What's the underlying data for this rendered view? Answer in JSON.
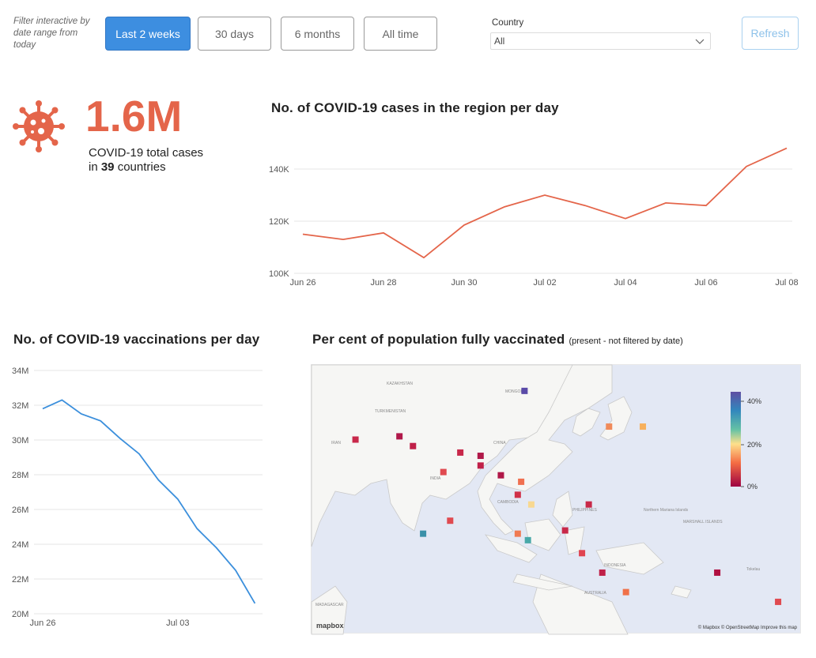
{
  "filter": {
    "caption": "Filter interactive by  date range from today",
    "buttons": [
      {
        "label": "Last 2 weeks",
        "active": true
      },
      {
        "label": "30 days",
        "active": false
      },
      {
        "label": "6 months",
        "active": false
      },
      {
        "label": "All time",
        "active": false
      }
    ],
    "country_label": "Country",
    "country_value": "All",
    "refresh_label": "Refresh"
  },
  "stat": {
    "value": "1.6M",
    "line1": "COVID-19 total cases",
    "line2_prefix": "in ",
    "country_count": "39",
    "line2_suffix": " countries",
    "icon": "virus-icon",
    "accent": "#e4654a"
  },
  "cases_chart": {
    "title": "No. of COVID-19 cases in the region per day"
  },
  "vacc_chart": {
    "title": "No. of COVID-19 vaccinations per day"
  },
  "map_panel": {
    "title": "Per cent of population fully vaccinated",
    "subtitle": "(present - not filtered by date)",
    "attribution_left": "mapbox",
    "attribution_right": "© Mapbox © OpenStreetMap  Improve this map",
    "legend_ticks": [
      "40%",
      "20%",
      "0%"
    ]
  },
  "chart_data": [
    {
      "type": "line",
      "title": "No. of COVID-19 cases in the region per day",
      "x": [
        "Jun 26",
        "Jun 27",
        "Jun 28",
        "Jun 29",
        "Jun 30",
        "Jul 01",
        "Jul 02",
        "Jul 03",
        "Jul 04",
        "Jul 05",
        "Jul 06",
        "Jul 07",
        "Jul 08"
      ],
      "xticks": [
        "Jun 26",
        "Jun 28",
        "Jun 30",
        "Jul 02",
        "Jul 04",
        "Jul 06",
        "Jul 08"
      ],
      "values": [
        115000,
        113000,
        115500,
        106000,
        118500,
        125500,
        130000,
        126000,
        121000,
        127000,
        126000,
        141000,
        148000
      ],
      "yticks": [
        "100K",
        "120K",
        "140K"
      ],
      "ylim": [
        100000,
        150000
      ],
      "color": "#e4654a",
      "grid": true
    },
    {
      "type": "line",
      "title": "No. of COVID-19 vaccinations per day",
      "x": [
        "Jun 26",
        "Jun 27",
        "Jun 28",
        "Jun 29",
        "Jun 30",
        "Jul 01",
        "Jul 02",
        "Jul 03",
        "Jul 04",
        "Jul 05",
        "Jul 06",
        "Jul 07"
      ],
      "xticks": [
        "Jun 26",
        "Jul 03"
      ],
      "values": [
        31800000,
        32300000,
        31500000,
        31100000,
        30100000,
        29200000,
        27700000,
        26600000,
        24900000,
        23800000,
        22500000,
        20600000
      ],
      "yticks": [
        "20M",
        "22M",
        "24M",
        "26M",
        "28M",
        "30M",
        "32M",
        "34M"
      ],
      "ylim": [
        20000000,
        34000000
      ],
      "color": "#3b8fdc",
      "grid": true
    }
  ],
  "map_markers": [
    {
      "name": "Mongolia",
      "lon": 103,
      "lat": 47,
      "color": "#5a4aa8"
    },
    {
      "name": "Korea",
      "lon": 128,
      "lat": 36,
      "color": "#f08a5a"
    },
    {
      "name": "Japan",
      "lon": 138,
      "lat": 36,
      "color": "#f7b05c"
    },
    {
      "name": "Iran",
      "lon": 53,
      "lat": 32,
      "color": "#c8284a"
    },
    {
      "name": "Afghanistan",
      "lon": 66,
      "lat": 33,
      "color": "#b0184a"
    },
    {
      "name": "Pakistan",
      "lon": 70,
      "lat": 30,
      "color": "#c02048"
    },
    {
      "name": "Nepal",
      "lon": 84,
      "lat": 28,
      "color": "#c8284a"
    },
    {
      "name": "Bhutan",
      "lon": 90,
      "lat": 27,
      "color": "#b01848"
    },
    {
      "name": "Bangladesh",
      "lon": 90,
      "lat": 24,
      "color": "#c02048"
    },
    {
      "name": "India",
      "lon": 79,
      "lat": 22,
      "color": "#e04a50"
    },
    {
      "name": "Myanmar",
      "lon": 96,
      "lat": 21,
      "color": "#b01848"
    },
    {
      "name": "Laos",
      "lon": 102,
      "lat": 19,
      "color": "#f07050"
    },
    {
      "name": "Thailand",
      "lon": 101,
      "lat": 15,
      "color": "#d03048"
    },
    {
      "name": "Cambodia",
      "lon": 105,
      "lat": 12,
      "color": "#f8d890"
    },
    {
      "name": "Philippines",
      "lon": 122,
      "lat": 12,
      "color": "#c82848"
    },
    {
      "name": "Sri Lanka",
      "lon": 81,
      "lat": 7,
      "color": "#e04a50"
    },
    {
      "name": "Maldives",
      "lon": 73,
      "lat": 3,
      "color": "#3a90a8"
    },
    {
      "name": "Malaysia",
      "lon": 101,
      "lat": 3,
      "color": "#f07a52"
    },
    {
      "name": "Singapore",
      "lon": 104,
      "lat": 1,
      "color": "#48a8a8"
    },
    {
      "name": "Brunei",
      "lon": 115,
      "lat": 4,
      "color": "#c82848"
    },
    {
      "name": "Indonesia",
      "lon": 120,
      "lat": -3,
      "color": "#e04450"
    },
    {
      "name": "Timor-Leste",
      "lon": 126,
      "lat": -9,
      "color": "#c02048"
    },
    {
      "name": "Australia",
      "lon": 133,
      "lat": -15,
      "color": "#f07048"
    },
    {
      "name": "Solomon Islands",
      "lon": 160,
      "lat": -9,
      "color": "#b01040"
    },
    {
      "name": "Fiji",
      "lon": 178,
      "lat": -18,
      "color": "#e04a50"
    }
  ]
}
